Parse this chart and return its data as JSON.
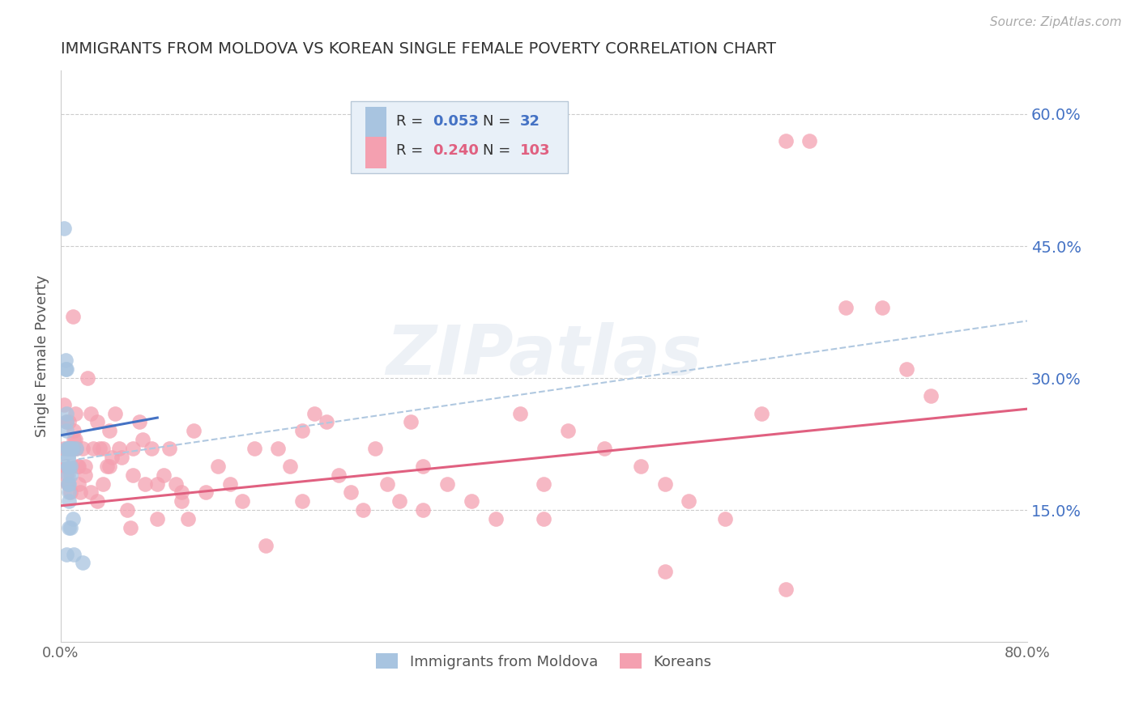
{
  "title": "IMMIGRANTS FROM MOLDOVA VS KOREAN SINGLE FEMALE POVERTY CORRELATION CHART",
  "source": "Source: ZipAtlas.com",
  "ylabel": "Single Female Poverty",
  "right_yticks": [
    "60.0%",
    "45.0%",
    "30.0%",
    "15.0%"
  ],
  "right_ytick_vals": [
    0.6,
    0.45,
    0.3,
    0.15
  ],
  "xlim": [
    0.0,
    0.8
  ],
  "ylim": [
    0.0,
    0.65
  ],
  "watermark": "ZIPatlas",
  "moldova_R": "0.053",
  "moldova_N": "32",
  "korean_R": "0.240",
  "korean_N": "103",
  "moldova_color": "#a8c4e0",
  "korean_color": "#f4a0b0",
  "moldova_line_color": "#4472c4",
  "korean_line_color": "#e06080",
  "trendline_dashed_color": "#b0c8e0",
  "moldova_x": [
    0.003,
    0.004,
    0.004,
    0.005,
    0.005,
    0.005,
    0.005,
    0.005,
    0.006,
    0.006,
    0.006,
    0.006,
    0.006,
    0.006,
    0.006,
    0.007,
    0.007,
    0.007,
    0.007,
    0.007,
    0.007,
    0.008,
    0.008,
    0.008,
    0.008,
    0.009,
    0.01,
    0.01,
    0.011,
    0.013,
    0.018,
    0.005
  ],
  "moldova_y": [
    0.47,
    0.32,
    0.31,
    0.26,
    0.25,
    0.24,
    0.22,
    0.31,
    0.22,
    0.21,
    0.21,
    0.2,
    0.2,
    0.19,
    0.18,
    0.18,
    0.17,
    0.16,
    0.22,
    0.2,
    0.13,
    0.22,
    0.2,
    0.19,
    0.13,
    0.22,
    0.14,
    0.22,
    0.1,
    0.22,
    0.09,
    0.1
  ],
  "korean_x": [
    0.003,
    0.003,
    0.004,
    0.005,
    0.005,
    0.006,
    0.006,
    0.007,
    0.007,
    0.008,
    0.008,
    0.009,
    0.01,
    0.01,
    0.011,
    0.011,
    0.012,
    0.012,
    0.013,
    0.014,
    0.015,
    0.016,
    0.018,
    0.02,
    0.022,
    0.025,
    0.027,
    0.03,
    0.032,
    0.035,
    0.038,
    0.04,
    0.042,
    0.045,
    0.048,
    0.05,
    0.055,
    0.058,
    0.06,
    0.065,
    0.068,
    0.07,
    0.075,
    0.08,
    0.085,
    0.09,
    0.095,
    0.1,
    0.105,
    0.11,
    0.12,
    0.13,
    0.14,
    0.15,
    0.16,
    0.17,
    0.18,
    0.19,
    0.2,
    0.21,
    0.22,
    0.23,
    0.24,
    0.25,
    0.26,
    0.27,
    0.28,
    0.29,
    0.3,
    0.32,
    0.34,
    0.36,
    0.38,
    0.4,
    0.42,
    0.45,
    0.48,
    0.5,
    0.52,
    0.55,
    0.58,
    0.6,
    0.62,
    0.65,
    0.68,
    0.7,
    0.72,
    0.005,
    0.01,
    0.015,
    0.02,
    0.025,
    0.03,
    0.035,
    0.04,
    0.06,
    0.08,
    0.1,
    0.2,
    0.3,
    0.4,
    0.5,
    0.6
  ],
  "korean_y": [
    0.27,
    0.22,
    0.2,
    0.2,
    0.19,
    0.22,
    0.18,
    0.25,
    0.22,
    0.22,
    0.17,
    0.2,
    0.37,
    0.22,
    0.24,
    0.23,
    0.23,
    0.26,
    0.22,
    0.2,
    0.18,
    0.17,
    0.22,
    0.2,
    0.3,
    0.26,
    0.22,
    0.25,
    0.22,
    0.18,
    0.2,
    0.24,
    0.21,
    0.26,
    0.22,
    0.21,
    0.15,
    0.13,
    0.22,
    0.25,
    0.23,
    0.18,
    0.22,
    0.14,
    0.19,
    0.22,
    0.18,
    0.16,
    0.14,
    0.24,
    0.17,
    0.2,
    0.18,
    0.16,
    0.22,
    0.11,
    0.22,
    0.2,
    0.24,
    0.26,
    0.25,
    0.19,
    0.17,
    0.15,
    0.22,
    0.18,
    0.16,
    0.25,
    0.2,
    0.18,
    0.16,
    0.14,
    0.26,
    0.18,
    0.24,
    0.22,
    0.2,
    0.18,
    0.16,
    0.14,
    0.26,
    0.57,
    0.57,
    0.38,
    0.38,
    0.31,
    0.28,
    0.25,
    0.22,
    0.2,
    0.19,
    0.17,
    0.16,
    0.22,
    0.2,
    0.19,
    0.18,
    0.17,
    0.16,
    0.15,
    0.14,
    0.08,
    0.06
  ],
  "background_color": "#ffffff",
  "grid_color": "#cccccc",
  "axis_color": "#cccccc",
  "title_color": "#333333",
  "right_label_color": "#4472c4",
  "legend_box_color": "#e8f0f8"
}
